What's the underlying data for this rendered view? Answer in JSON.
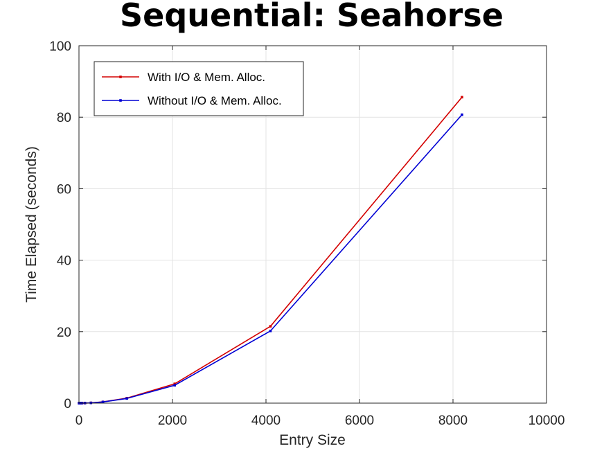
{
  "chart_data": {
    "type": "line",
    "title": "Sequential: Seahorse",
    "xlabel": "Entry Size",
    "ylabel": "Time Elapsed (seconds)",
    "xlim": [
      0,
      10000
    ],
    "ylim": [
      0,
      100
    ],
    "x_ticks": [
      "0",
      "2000",
      "4000",
      "6000",
      "8000",
      "10000"
    ],
    "y_ticks": [
      "0",
      "20",
      "40",
      "60",
      "80",
      "100"
    ],
    "grid": true,
    "legend_position": "top-left",
    "x": [
      2,
      4,
      8,
      16,
      32,
      64,
      128,
      256,
      512,
      1024,
      2048,
      4096,
      8192
    ],
    "series": [
      {
        "name": "With I/O & Mem. Alloc.",
        "color": "#d40000",
        "values": [
          0.0,
          0.0,
          0.0,
          0.0,
          0.0,
          0.0,
          0.02,
          0.08,
          0.35,
          1.4,
          5.4,
          21.5,
          85.6
        ]
      },
      {
        "name": "Without I/O & Mem. Alloc.",
        "color": "#0000d4",
        "values": [
          0.0,
          0.0,
          0.0,
          0.0,
          0.0,
          0.0,
          0.02,
          0.07,
          0.32,
          1.3,
          5.0,
          20.2,
          80.7
        ]
      }
    ]
  }
}
